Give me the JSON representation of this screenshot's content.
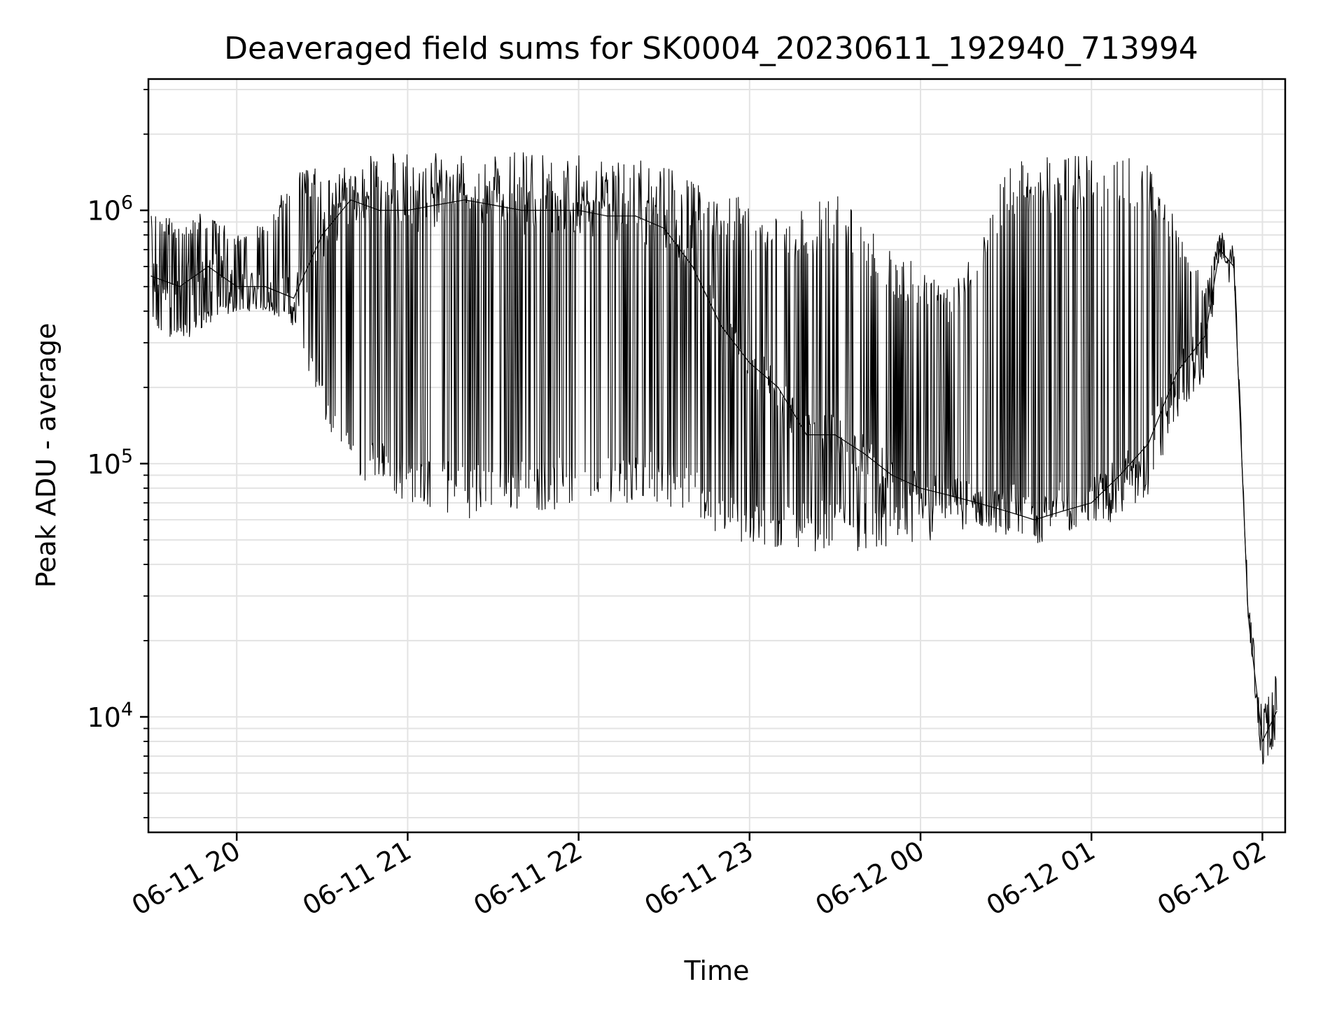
{
  "chart_data": {
    "type": "line",
    "title": "Deaveraged field sums for SK0004_20230611_192940_713994",
    "xlabel": "Time",
    "ylabel": "Peak ADU - average",
    "yscale": "log",
    "grid": true,
    "xlim": [
      "2023-06-11 19:29:40",
      "2023-06-12 02:08:00"
    ],
    "ylim": [
      3500,
      3300000
    ],
    "x_ticks": [
      {
        "label": "06-11 20",
        "value": "2023-06-11 20:00"
      },
      {
        "label": "06-11 21",
        "value": "2023-06-11 21:00"
      },
      {
        "label": "06-11 22",
        "value": "2023-06-11 22:00"
      },
      {
        "label": "06-11 23",
        "value": "2023-06-11 23:00"
      },
      {
        "label": "06-12 00",
        "value": "2023-06-12 00:00"
      },
      {
        "label": "06-12 01",
        "value": "2023-06-12 01:00"
      },
      {
        "label": "06-12 02",
        "value": "2023-06-12 02:00"
      }
    ],
    "y_ticks": [
      {
        "base": "10",
        "exp": "4",
        "value": 10000
      },
      {
        "base": "10",
        "exp": "5",
        "value": 100000
      },
      {
        "base": "10",
        "exp": "6",
        "value": 1000000
      }
    ],
    "series": [
      {
        "color": "#000000",
        "x": [
          "2023-06-11 19:30",
          "2023-06-11 19:40",
          "2023-06-11 19:50",
          "2023-06-11 20:00",
          "2023-06-11 20:10",
          "2023-06-11 20:20",
          "2023-06-11 20:30",
          "2023-06-11 20:40",
          "2023-06-11 20:50",
          "2023-06-11 21:00",
          "2023-06-11 21:10",
          "2023-06-11 21:20",
          "2023-06-11 21:30",
          "2023-06-11 21:40",
          "2023-06-11 21:50",
          "2023-06-11 22:00",
          "2023-06-11 22:10",
          "2023-06-11 22:20",
          "2023-06-11 22:30",
          "2023-06-11 22:40",
          "2023-06-11 22:50",
          "2023-06-11 23:00",
          "2023-06-11 23:10",
          "2023-06-11 23:20",
          "2023-06-11 23:30",
          "2023-06-11 23:40",
          "2023-06-11 23:50",
          "2023-06-12 00:00",
          "2023-06-12 00:10",
          "2023-06-12 00:20",
          "2023-06-12 00:30",
          "2023-06-12 00:40",
          "2023-06-12 00:50",
          "2023-06-12 01:00",
          "2023-06-12 01:10",
          "2023-06-12 01:20",
          "2023-06-12 01:30",
          "2023-06-12 01:40",
          "2023-06-12 01:45",
          "2023-06-12 01:50",
          "2023-06-12 01:55",
          "2023-06-12 02:00",
          "2023-06-12 02:05"
        ],
        "y": [
          550000,
          500000,
          600000,
          500000,
          500000,
          450000,
          800000,
          1100000,
          1000000,
          1000000,
          1050000,
          1100000,
          1050000,
          1000000,
          1000000,
          1000000,
          950000,
          950000,
          850000,
          600000,
          350000,
          250000,
          200000,
          130000,
          130000,
          110000,
          90000,
          80000,
          75000,
          70000,
          65000,
          60000,
          65000,
          70000,
          90000,
          120000,
          230000,
          320000,
          700000,
          600000,
          25000,
          8000,
          10500
        ],
        "y_low": [
          330000,
          300000,
          350000,
          400000,
          400000,
          350000,
          150000,
          90000,
          80000,
          70000,
          65000,
          60000,
          65000,
          65000,
          65000,
          65000,
          70000,
          70000,
          70000,
          60000,
          50000,
          45000,
          45000,
          45000,
          45000,
          45000,
          45000,
          45000,
          55000,
          50000,
          50000,
          50000,
          50000,
          55000,
          60000,
          70000,
          150000,
          220000,
          650000,
          580000,
          25000,
          6000,
          8000
        ],
        "y_high": [
          1000000,
          900000,
          1000000,
          800000,
          900000,
          1400000,
          1500000,
          1600000,
          1700000,
          1700000,
          1750000,
          1700000,
          1700000,
          1700000,
          1650000,
          1650000,
          1600000,
          1600000,
          1500000,
          1300000,
          1200000,
          1100000,
          1000000,
          1000000,
          1200000,
          900000,
          700000,
          600000,
          500000,
          700000,
          1600000,
          1600000,
          1650000,
          1650000,
          1700000,
          1500000,
          900000,
          500000,
          800000,
          700000,
          30000,
          10500,
          15000
        ]
      }
    ]
  }
}
